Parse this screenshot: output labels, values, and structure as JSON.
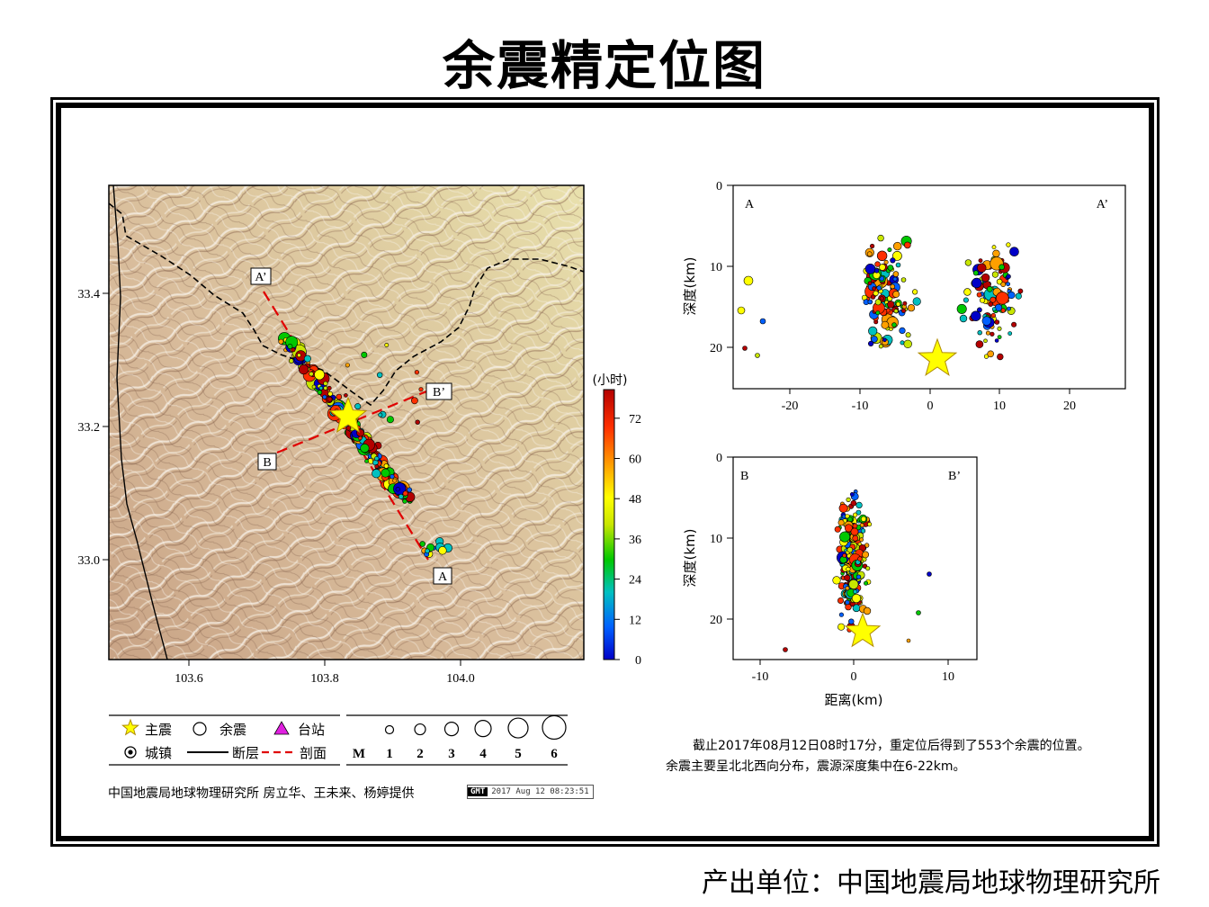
{
  "title": "余震精定位图",
  "producer": "产出单位：中国地震局地球物理研究所",
  "credit": "中国地震局地球物理研究所 房立华、王未来、杨婷提供",
  "gmt_logo": "GMT",
  "timestamp": "2017 Aug 12 08:23:51",
  "description": {
    "line1": "截止2017年08月12日08时17分，重定位后得到了553个余震的位置。",
    "line2": "余震主要呈北北西向分布，震源深度集中在6-22km。"
  },
  "map": {
    "x_ticks": [
      "103.6",
      "103.8",
      "104.0"
    ],
    "y_ticks": [
      "33.4",
      "33.2",
      "33.0"
    ],
    "profile_labels": {
      "A": "A",
      "A_prime": "A’",
      "B": "B",
      "B_prime": "B’"
    },
    "colorbar": {
      "title": "(小时)",
      "ticks": [
        "0",
        "12",
        "24",
        "36",
        "48",
        "60",
        "72"
      ],
      "colors": [
        "#0000c8",
        "#0060ff",
        "#00c0c0",
        "#00c800",
        "#c8e600",
        "#ffff00",
        "#ffa000",
        "#ff3000",
        "#b40000"
      ]
    }
  },
  "legend": {
    "mainshock": "主震",
    "aftershock": "余震",
    "station": "台站",
    "town": "城镇",
    "fault": "断层",
    "profile": "剖面",
    "mag_label": "M",
    "magnitudes": [
      "1",
      "2",
      "3",
      "4",
      "5",
      "6"
    ]
  },
  "profile_AA": {
    "left_label": "A",
    "right_label": "A’",
    "x_ticks": [
      "-20",
      "-10",
      "0",
      "10",
      "20"
    ],
    "y_ticks": [
      "0",
      "10",
      "20"
    ],
    "ylabel": "深度(km)"
  },
  "profile_BB": {
    "left_label": "B",
    "right_label": "B’",
    "x_ticks": [
      "-10",
      "0",
      "10"
    ],
    "y_ticks": [
      "0",
      "10",
      "20"
    ],
    "ylabel": "深度(km)",
    "xlabel": "距离(km)"
  },
  "colors": {
    "mainshock": "#ffff00",
    "profile_line": "#e00000",
    "station": "#e020e0"
  }
}
